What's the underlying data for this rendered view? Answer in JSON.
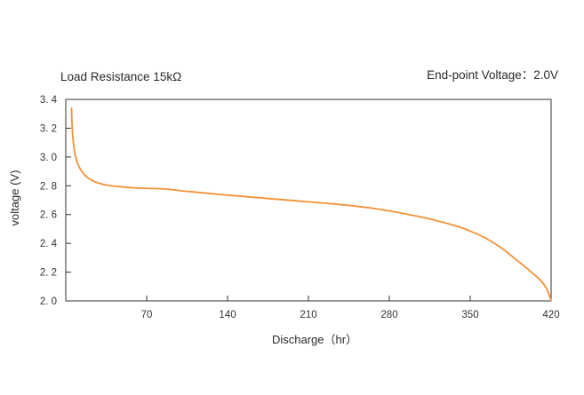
{
  "chart_data": {
    "type": "line",
    "title": "",
    "left_note": "Load Resistance 15kΩ",
    "right_note": "End-point Voltage：2.0V",
    "xlabel": "Discharge（hr）",
    "ylabel": "voltage (V)",
    "xlim": [
      0,
      420
    ],
    "ylim": [
      2.0,
      3.4
    ],
    "xticks": [
      "70",
      "140",
      "210",
      "280",
      "350",
      "420"
    ],
    "yticks": [
      "2. 0",
      "2. 2",
      "2. 4",
      "2. 6",
      "2. 8",
      "3. 0",
      "3. 2",
      "3. 4"
    ],
    "grid": false,
    "line_color": "#F39237",
    "series": [
      {
        "x": [
          5,
          5.3,
          6,
          7,
          8,
          10,
          13,
          17,
          22,
          28,
          35,
          45,
          60,
          80,
          90,
          100,
          120,
          140,
          170,
          200,
          230,
          260,
          280,
          300,
          320,
          340,
          350,
          360,
          370,
          380,
          390,
          400,
          410,
          415,
          418,
          420
        ],
        "values": [
          3.34,
          3.25,
          3.15,
          3.07,
          3.02,
          2.96,
          2.91,
          2.87,
          2.84,
          2.82,
          2.805,
          2.795,
          2.785,
          2.78,
          2.775,
          2.765,
          2.75,
          2.735,
          2.715,
          2.695,
          2.675,
          2.65,
          2.625,
          2.595,
          2.56,
          2.515,
          2.485,
          2.45,
          2.405,
          2.35,
          2.285,
          2.22,
          2.15,
          2.1,
          2.05,
          2.0
        ]
      }
    ]
  }
}
